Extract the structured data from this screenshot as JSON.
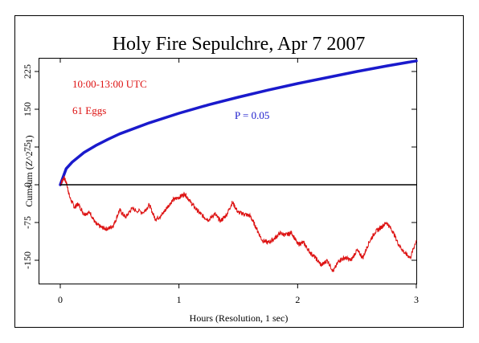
{
  "chart_data": {
    "type": "line",
    "title": "Holy Fire Sepulchre, Apr 7 2007",
    "xlabel": "Hours (Resolution, 1 sec)",
    "ylabel": "Cumsum (Z^2 - 1)",
    "xlim": [
      0,
      3
    ],
    "ylim": [
      -195,
      245
    ],
    "x_ticks": [
      0,
      1,
      2,
      3
    ],
    "x_tick_labels": [
      "0",
      "1",
      "2",
      "3"
    ],
    "y_ticks": [
      -150,
      -75,
      0,
      75,
      150,
      225
    ],
    "y_tick_labels": [
      "-150",
      "-75",
      "0",
      "75",
      "150",
      "225"
    ],
    "grid": false,
    "annotations": [
      {
        "text": "10:00-13:00 UTC",
        "color": "#dd1111"
      },
      {
        "text": "61 Eggs",
        "color": "#dd1111"
      },
      {
        "text": "P = 0.05",
        "color": "#1a1acc"
      }
    ],
    "zero_line": 0,
    "series": [
      {
        "role": "significance envelope (P = 0.05)",
        "color": "#1a1acc",
        "x": [
          0,
          0.05,
          0.1,
          0.2,
          0.3,
          0.4,
          0.5,
          0.75,
          1.0,
          1.25,
          1.5,
          1.75,
          2.0,
          2.25,
          2.5,
          2.75,
          3.0
        ],
        "values": [
          0,
          32,
          45,
          64,
          78,
          90,
          101,
          123,
          142,
          159,
          174,
          188,
          201,
          213,
          225,
          236,
          246
        ]
      },
      {
        "role": "cumulative deviation",
        "color": "#dd1111",
        "x": [
          0,
          0.03,
          0.05,
          0.08,
          0.12,
          0.15,
          0.2,
          0.25,
          0.3,
          0.35,
          0.4,
          0.45,
          0.5,
          0.55,
          0.6,
          0.7,
          0.75,
          0.8,
          0.85,
          0.9,
          0.95,
          1.0,
          1.05,
          1.1,
          1.15,
          1.2,
          1.25,
          1.3,
          1.35,
          1.4,
          1.45,
          1.5,
          1.55,
          1.6,
          1.65,
          1.7,
          1.75,
          1.8,
          1.85,
          1.9,
          1.95,
          2.0,
          2.05,
          2.1,
          2.15,
          2.2,
          2.25,
          2.3,
          2.35,
          2.4,
          2.45,
          2.5,
          2.55,
          2.6,
          2.65,
          2.7,
          2.75,
          2.8,
          2.85,
          2.9,
          2.95,
          3.0
        ],
        "values": [
          0,
          14,
          5,
          -25,
          -45,
          -38,
          -58,
          -55,
          -78,
          -85,
          -88,
          -80,
          -50,
          -65,
          -48,
          -55,
          -40,
          -68,
          -62,
          -45,
          -30,
          -25,
          -18,
          -35,
          -50,
          -62,
          -70,
          -58,
          -72,
          -60,
          -35,
          -55,
          -58,
          -62,
          -85,
          -110,
          -115,
          -108,
          -96,
          -100,
          -95,
          -118,
          -115,
          -133,
          -145,
          -160,
          -150,
          -172,
          -150,
          -145,
          -150,
          -130,
          -145,
          -115,
          -95,
          -85,
          -75,
          -92,
          -118,
          -135,
          -145,
          -110
        ]
      }
    ]
  }
}
